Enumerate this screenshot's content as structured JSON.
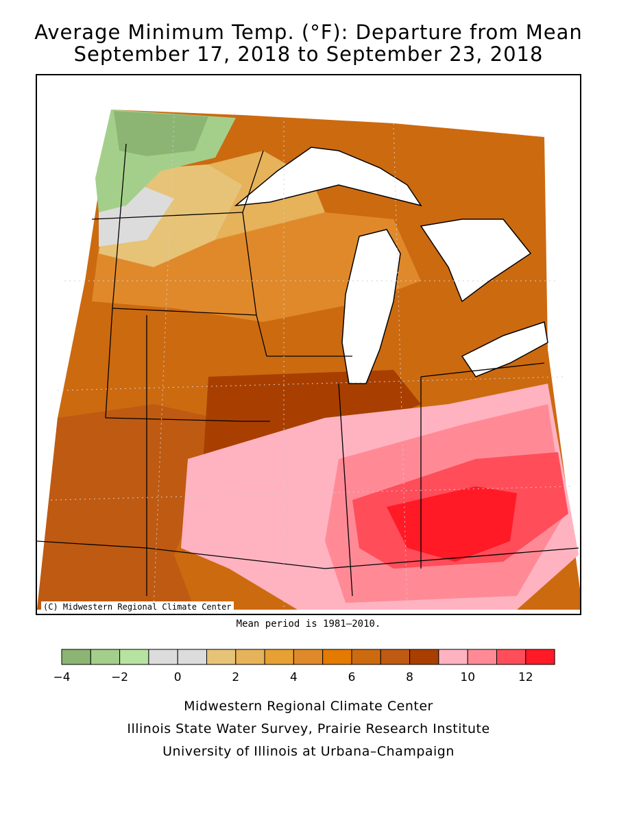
{
  "title": {
    "line1": "Average Minimum Temp. (°F): Departure from Mean",
    "line2": "September 17, 2018 to September 23, 2018"
  },
  "map": {
    "copyright": "(C) Midwestern Regional Climate Center",
    "region": "Upper Midwest / Great Lakes",
    "regions": [
      {
        "name": "northwest-cool-region",
        "color": "#8cb574",
        "value_range": "-4 to -3"
      },
      {
        "name": "north-dakota-mild-region",
        "color": "#e6c377",
        "value_range": "1 to 2"
      },
      {
        "name": "upper-midwest-warm-region",
        "color": "#e0892b",
        "value_range": "4 to 5"
      },
      {
        "name": "central-plains-warm-region",
        "color": "#cc6a10",
        "value_range": "6 to 7"
      },
      {
        "name": "missouri-warm-region",
        "color": "#bf5a12",
        "value_range": "7 to 8"
      },
      {
        "name": "ohio-valley-hot-region",
        "color": "#ff8a96",
        "value_range": "10 to 11"
      },
      {
        "name": "kentucky-hottest-region",
        "color": "#ff1a26",
        "value_range": "12 to 13"
      }
    ]
  },
  "mean_note": "Mean period is 1981–2010.",
  "legend": {
    "colors": [
      "#8cb574",
      "#a4cf8b",
      "#b7e3a1",
      "#dcdcdc",
      "#dcdcdc",
      "#e6c377",
      "#e6b25a",
      "#e6a033",
      "#e0892b",
      "#e57a00",
      "#cc6a10",
      "#bf5a12",
      "#a83f00",
      "#ffb3c1",
      "#ff8a96",
      "#ff4d5a",
      "#ff1a26"
    ],
    "tick_labels": [
      "−4",
      "−2",
      "0",
      "2",
      "4",
      "6",
      "8",
      "10",
      "12"
    ]
  },
  "credits": {
    "line1": "Midwestern Regional Climate Center",
    "line2": "Illinois State Water Survey, Prairie Research Institute",
    "line3": "University of Illinois at Urbana–Champaign"
  }
}
